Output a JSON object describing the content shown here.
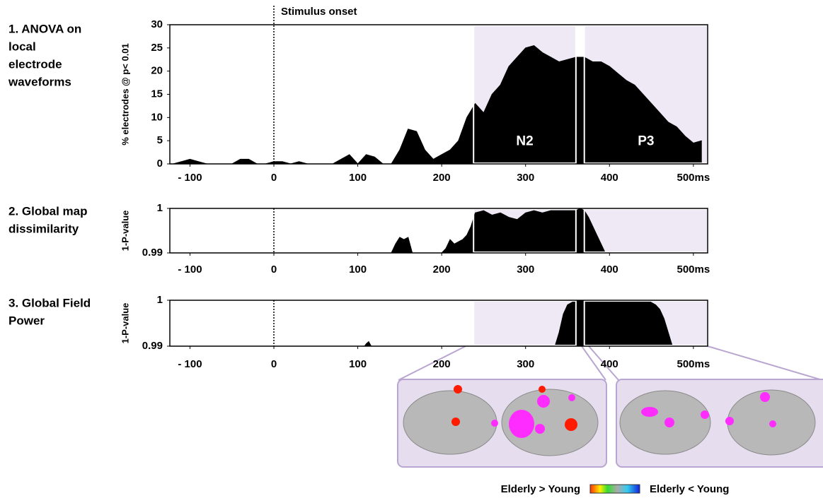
{
  "annotation": "Stimulus onset",
  "colorbar": {
    "left_label": "Elderly > Young",
    "right_label": "Elderly < Young"
  },
  "chart_data": [
    {
      "type": "area",
      "panel_label": [
        "1. ANOVA on",
        "local",
        "electrode",
        "waveforms"
      ],
      "y_label": "% electrodes @ p< 0.01",
      "color": "#000000",
      "x": [
        -120,
        -110,
        -100,
        -90,
        -80,
        -70,
        -60,
        -50,
        -40,
        -30,
        -20,
        -10,
        0,
        10,
        20,
        30,
        40,
        50,
        60,
        70,
        80,
        90,
        100,
        110,
        120,
        130,
        140,
        150,
        160,
        170,
        180,
        190,
        200,
        210,
        220,
        230,
        240,
        250,
        260,
        270,
        280,
        290,
        300,
        310,
        320,
        330,
        340,
        350,
        360,
        370,
        380,
        390,
        400,
        410,
        420,
        430,
        440,
        450,
        460,
        470,
        480,
        490,
        500,
        510
      ],
      "values": [
        0,
        0.5,
        1,
        0.5,
        0,
        0,
        0,
        0,
        1,
        1,
        0,
        0,
        0.5,
        0.5,
        0,
        0.5,
        0,
        0,
        0,
        0,
        1,
        2,
        0,
        2,
        1.5,
        0,
        0,
        3,
        7.5,
        7,
        3,
        1,
        2,
        3,
        5,
        10,
        13,
        11,
        15,
        17,
        21,
        23,
        25,
        25.5,
        24,
        23,
        22,
        22.5,
        23,
        23,
        22,
        22,
        21,
        19.5,
        18,
        17,
        15,
        13,
        11,
        9,
        8,
        6,
        4.5,
        5
      ],
      "xlim": [
        -124,
        517
      ],
      "ylim": [
        0,
        30
      ],
      "xticks": [
        {
          "value": -100,
          "label": "- 100"
        },
        0,
        100,
        200,
        300,
        400,
        {
          "value": 500,
          "label": "500ms"
        }
      ],
      "yticks": [
        0,
        5,
        10,
        15,
        20,
        25,
        30
      ],
      "vline": 0,
      "windows": [
        [
          238,
          360
        ],
        [
          370,
          517
        ]
      ],
      "window_labels": [
        "N2",
        "P3"
      ]
    },
    {
      "type": "area",
      "panel_label": [
        "2. Global map",
        "dissimilarity"
      ],
      "y_label": "1-P-value",
      "color": "#000000",
      "x": [
        140,
        145,
        150,
        155,
        160,
        165,
        200,
        205,
        210,
        215,
        220,
        225,
        230,
        235,
        240,
        250,
        260,
        270,
        280,
        290,
        300,
        310,
        320,
        330,
        340,
        350,
        360,
        365,
        370,
        375,
        380,
        385,
        390,
        395
      ],
      "values": [
        0.99,
        0.992,
        0.9935,
        0.993,
        0.9935,
        0.99,
        0.99,
        0.991,
        0.993,
        0.992,
        0.9925,
        0.993,
        0.994,
        0.996,
        0.999,
        0.9995,
        0.9985,
        0.999,
        0.998,
        0.9975,
        0.999,
        0.9995,
        0.999,
        0.9995,
        0.9995,
        0.9995,
        0.9995,
        1,
        0.9995,
        0.998,
        0.996,
        0.994,
        0.992,
        0.99
      ],
      "xlim": [
        -124,
        517
      ],
      "ylim": [
        0.99,
        1
      ],
      "xticks": [
        {
          "value": -100,
          "label": "- 100"
        },
        0,
        100,
        200,
        300,
        400,
        {
          "value": 500,
          "label": "500ms"
        }
      ],
      "yticks": [
        0.99,
        1
      ],
      "vline": 0,
      "windows": [
        [
          238,
          360
        ],
        [
          370,
          517
        ]
      ]
    },
    {
      "type": "area",
      "panel_label": [
        "3. Global Field",
        "Power"
      ],
      "y_label": "1-P-value",
      "color": "#000000",
      "x": [
        108,
        110,
        113,
        116,
        335,
        340,
        345,
        350,
        355,
        360,
        370,
        400,
        430,
        445,
        450,
        455,
        460,
        465,
        470,
        475
      ],
      "values": [
        0.99,
        0.9905,
        0.991,
        0.99,
        0.99,
        0.993,
        0.997,
        0.999,
        0.9995,
        1,
        1,
        1,
        1,
        1,
        0.9995,
        0.999,
        0.998,
        0.996,
        0.993,
        0.99
      ],
      "xlim": [
        -124,
        517
      ],
      "ylim": [
        0.99,
        1
      ],
      "xticks": [
        {
          "value": -100,
          "label": "- 100"
        },
        0,
        100,
        200,
        300,
        400,
        {
          "value": 500,
          "label": "500ms"
        }
      ],
      "yticks": [
        0.99,
        1
      ],
      "vline": 0,
      "windows": [
        [
          238,
          360
        ],
        [
          370,
          517
        ]
      ]
    }
  ]
}
